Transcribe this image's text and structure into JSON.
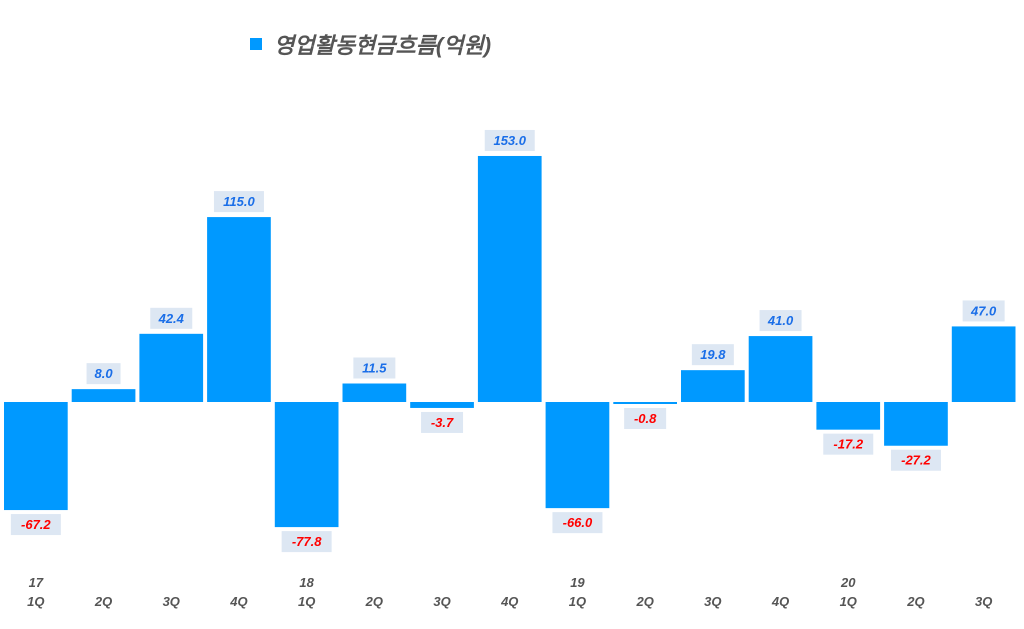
{
  "chart_data": {
    "type": "bar",
    "title": "",
    "legend": [
      "영업활동현금흐름(억원)"
    ],
    "legend_position": "top",
    "categories": [
      "17 1Q",
      "2Q",
      "3Q",
      "4Q",
      "18 1Q",
      "2Q",
      "3Q",
      "4Q",
      "19 1Q",
      "2Q",
      "3Q",
      "4Q",
      "20 1Q",
      "2Q",
      "3Q"
    ],
    "year_labels": [
      "17",
      "",
      "",
      "",
      "18",
      "",
      "",
      "",
      "19",
      "",
      "",
      "",
      "20",
      "",
      ""
    ],
    "quarter_labels": [
      "1Q",
      "2Q",
      "3Q",
      "4Q",
      "1Q",
      "2Q",
      "3Q",
      "4Q",
      "1Q",
      "2Q",
      "3Q",
      "4Q",
      "1Q",
      "2Q",
      "3Q"
    ],
    "series": [
      {
        "name": "영업활동현금흐름(억원)",
        "values": [
          -67.2,
          8.0,
          42.4,
          115.0,
          -77.8,
          11.5,
          -3.7,
          153.0,
          -66.0,
          -0.8,
          19.8,
          41.0,
          -17.2,
          -27.2,
          47.0
        ]
      }
    ],
    "data_labels": [
      "-67.2",
      "8.0",
      "42.4",
      "115.0",
      "-77.8",
      "11.5",
      "-3.7",
      "153.0",
      "-66.0",
      "-0.8",
      "19.8",
      "41.0",
      "-17.2",
      "-27.2",
      "47.0"
    ],
    "xlabel": "",
    "ylabel": "",
    "ylim": [
      -90,
      160
    ],
    "grid": false,
    "colors": {
      "bar": "#0099ff",
      "positive_label": "#1a6ee8",
      "negative_label": "#ff0000",
      "label_bg": "#dde7f3",
      "axis_text": "#555555"
    }
  }
}
